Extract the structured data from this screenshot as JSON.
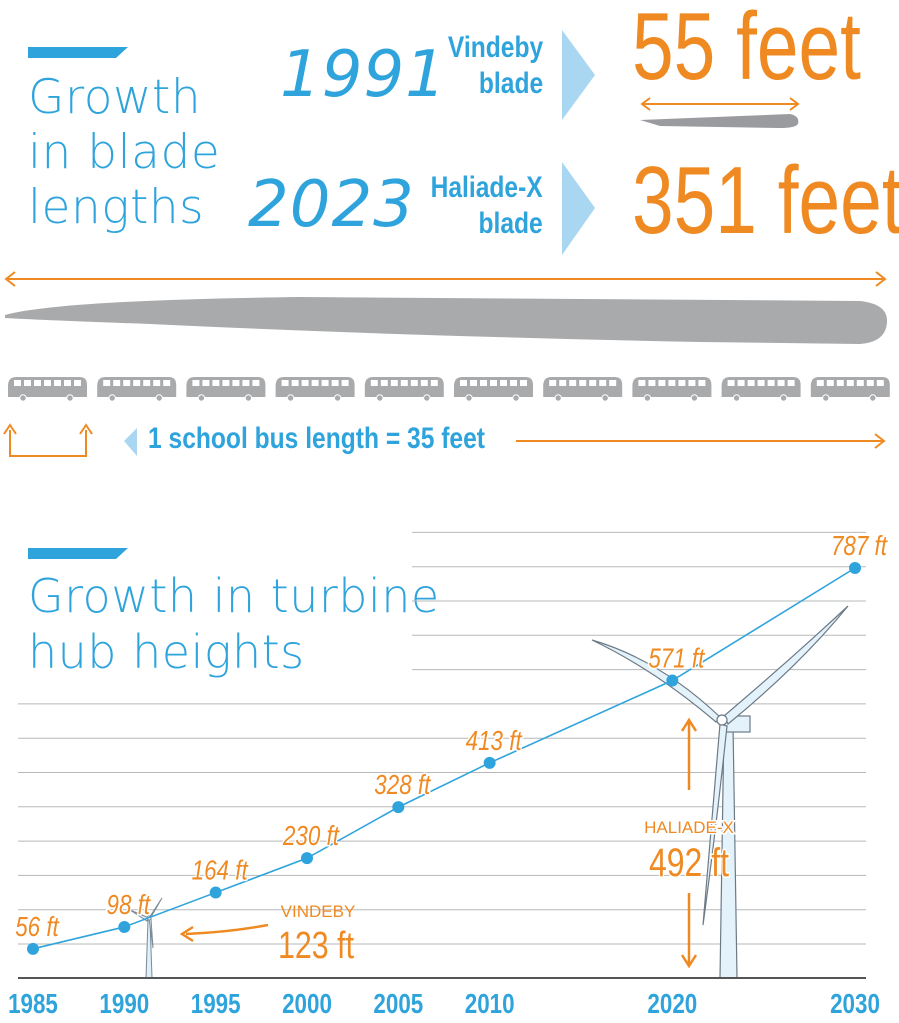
{
  "blades": {
    "heading": [
      "Growth",
      "in blade",
      "lengths"
    ],
    "items": [
      {
        "year": "1991",
        "name_line1": "Vindeby",
        "name_line2": "blade",
        "length": "55 feet"
      },
      {
        "year": "2023",
        "name_line1": "Haliade-X",
        "name_line2": "blade",
        "length": "351 feet"
      }
    ],
    "bus_caption": "1 school bus length = 35 feet",
    "bus_count": 10
  },
  "hub": {
    "heading": [
      "Growth in turbine",
      "hub heights"
    ],
    "vindeby_label": "VINDEBY",
    "vindeby_value": "123 ft",
    "haliade_label": "HALIADE-X",
    "haliade_value": "492 ft"
  },
  "colors": {
    "blue": "#2fa4dc",
    "orange": "#ef8a23",
    "gray": "#a9aaac",
    "light_blue": "#a9d6f0"
  },
  "chart_data": {
    "type": "line",
    "title": "Growth in turbine hub heights",
    "xlabel": "",
    "ylabel": "",
    "x_ticks": [
      1985,
      1990,
      1995,
      2000,
      2005,
      2010,
      2020,
      2030
    ],
    "xlim": [
      1985,
      2030
    ],
    "ylim": [
      0,
      850
    ],
    "grid": true,
    "series": [
      {
        "x": [
          1985,
          1990,
          1995,
          2000,
          2005,
          2010,
          2020,
          2030
        ],
        "y": [
          56,
          98,
          164,
          230,
          328,
          413,
          571,
          787
        ],
        "labels": [
          "56 ft",
          "98 ft",
          "164 ft",
          "230 ft",
          "328 ft",
          "413 ft",
          "571 ft",
          "787 ft"
        ]
      }
    ],
    "annotations": [
      {
        "text": "VINDEBY 123 ft",
        "x": 1991,
        "y": 123
      },
      {
        "text": "HALIADE-X 492 ft",
        "x": 2023,
        "y": 492
      }
    ]
  }
}
